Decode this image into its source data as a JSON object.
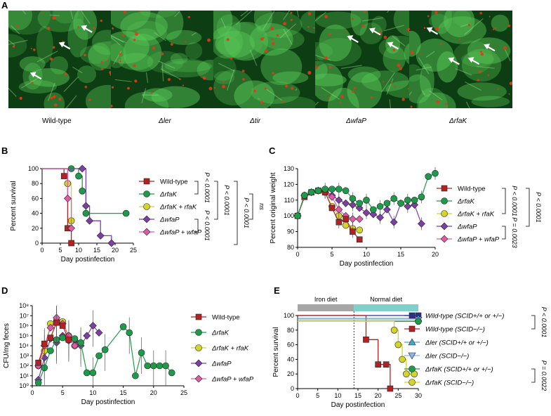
{
  "panel_letters": {
    "a": "A",
    "b": "B",
    "c": "C",
    "d": "D",
    "e": "E"
  },
  "micrographs": [
    {
      "label": "Wild-type",
      "arrows": 3
    },
    {
      "label": "Δler",
      "arrows": 0
    },
    {
      "label": "Δtir",
      "arrows": 0
    },
    {
      "label": "ΔwfaP",
      "arrows": 3
    },
    {
      "label": "ΔrfaK",
      "arrows": 4
    }
  ],
  "colors": {
    "wild_type": "#b22222",
    "rfaK": "#1e9b4a",
    "rfaK_comp": "#d4d42a",
    "wfaP": "#7d3fa6",
    "wfaP_comp": "#e05aa8",
    "ler_wt": "#2e2e8c",
    "ler_scid": "#8ab6e0",
    "iron_bar": "#a6a6a6",
    "normal_bar": "#7fcfca",
    "micro_bg": "#0d3d12",
    "micro_green": "#58c857",
    "micro_red": "#e23a1a"
  },
  "chart_data": [
    {
      "panel": "B",
      "type": "line",
      "xlabel": "Day postinfection",
      "ylabel": "Percent survival",
      "xlim": [
        0,
        25
      ],
      "ylim": [
        0,
        100
      ],
      "xticks": [
        0,
        5,
        10,
        15,
        20,
        25
      ],
      "yticks": [
        0,
        20,
        40,
        60,
        80,
        100
      ],
      "series": [
        {
          "name": "Wild-type",
          "x": [
            0,
            6,
            7,
            8
          ],
          "y": [
            100,
            90,
            20,
            0
          ]
        },
        {
          "name": "ΔrfaK",
          "x": [
            0,
            8,
            10,
            11,
            12,
            23
          ],
          "y": [
            100,
            100,
            90,
            70,
            40,
            40
          ]
        },
        {
          "name": "ΔrfaK + rfaK",
          "x": [
            0,
            7,
            8
          ],
          "y": [
            100,
            80,
            30
          ]
        },
        {
          "name": "ΔwfaP",
          "x": [
            0,
            11,
            12,
            13,
            16,
            19
          ],
          "y": [
            100,
            100,
            50,
            30,
            10,
            0
          ]
        },
        {
          "name": "ΔwfaP + wfaP",
          "x": [
            0,
            7,
            8
          ],
          "y": [
            100,
            60,
            20
          ]
        }
      ],
      "annotations": [
        "P < 0.0001",
        "P < 0.0001",
        "P < 0.0001",
        "ns",
        "P < 0.0001"
      ]
    },
    {
      "panel": "C",
      "type": "line",
      "xlabel": "Day postinfection",
      "ylabel": "Percent original weight",
      "xlim": [
        0,
        20
      ],
      "ylim": [
        80,
        130
      ],
      "xticks": [
        0,
        5,
        10,
        15,
        20
      ],
      "yticks": [
        80,
        90,
        100,
        110,
        120,
        130
      ],
      "series": [
        {
          "name": "Wild-type",
          "x": [
            0,
            1,
            2,
            3,
            4,
            5,
            6,
            7,
            8,
            9
          ],
          "y": [
            100,
            112,
            115,
            116,
            115,
            105,
            96,
            98,
            90,
            85
          ]
        },
        {
          "name": "ΔrfaK",
          "x": [
            0,
            1,
            2,
            3,
            4,
            5,
            6,
            7,
            8,
            9,
            10,
            11,
            12,
            13,
            14,
            15,
            16,
            17,
            18,
            19,
            20
          ],
          "y": [
            100,
            113,
            115,
            116,
            117,
            117,
            117,
            116,
            111,
            108,
            110,
            104,
            106,
            108,
            111,
            108,
            110,
            110,
            112,
            125,
            127
          ]
        },
        {
          "name": "ΔrfaK + rfaK",
          "x": [
            0,
            1,
            2,
            3,
            4,
            5,
            6,
            7,
            8,
            9
          ],
          "y": [
            100,
            113,
            115,
            116,
            115,
            106,
            100,
            94,
            92,
            91
          ]
        },
        {
          "name": "ΔwfaP",
          "x": [
            0,
            1,
            2,
            3,
            4,
            5,
            6,
            7,
            8,
            9,
            10,
            11,
            12,
            13,
            14,
            15,
            16,
            17,
            18
          ],
          "y": [
            100,
            113,
            115,
            116,
            116,
            113,
            110,
            108,
            107,
            105,
            102,
            101,
            99,
            104,
            96,
            108,
            106,
            107,
            95
          ]
        },
        {
          "name": "ΔwfaP + wfaP",
          "x": [
            0,
            1,
            2,
            3,
            4,
            5,
            6,
            7,
            8,
            9
          ],
          "y": [
            100,
            113,
            115,
            116,
            115,
            112,
            104,
            100,
            98,
            98
          ]
        }
      ],
      "annotations": [
        "P < 0.0001",
        "P < 0.0001",
        "P = 0.0023"
      ]
    },
    {
      "panel": "D",
      "type": "line",
      "xlabel": "Day postinfection",
      "ylabel": "CFU/mg feces",
      "xlim": [
        0,
        25
      ],
      "ylim_log10": [
        0,
        8
      ],
      "xticks": [
        0,
        5,
        10,
        15,
        20,
        25
      ],
      "yticks": [
        "10⁰",
        "10¹",
        "10²",
        "10³",
        "10⁴",
        "10⁵",
        "10⁶",
        "10⁷",
        "10⁸"
      ],
      "series": [
        {
          "name": "Wild-type",
          "x": [
            1,
            2,
            3,
            4,
            5,
            6
          ],
          "log10_y": [
            2.3,
            4.2,
            4.8,
            6.3,
            6.0,
            4.6
          ]
        },
        {
          "name": "ΔrfaK",
          "x": [
            1,
            2,
            3,
            4,
            5,
            6,
            7,
            8,
            9,
            10,
            11,
            12,
            15,
            16,
            17,
            18,
            19,
            20,
            21,
            22,
            23
          ],
          "log10_y": [
            0.3,
            1.8,
            3.5,
            4.6,
            4.8,
            4.7,
            4.7,
            4.3,
            1.3,
            1.3,
            3.0,
            3.6,
            5.9,
            5.3,
            1.0,
            3.3,
            2.0,
            2.0,
            2.0,
            2.0,
            1.3
          ]
        },
        {
          "name": "ΔrfaK + rfaK",
          "x": [
            1,
            2,
            3,
            4,
            5,
            6,
            7
          ],
          "log10_y": [
            2.0,
            3.5,
            6.2,
            6.5,
            6.4,
            5.0,
            4.0
          ]
        },
        {
          "name": "ΔwfaP",
          "x": [
            1,
            2,
            3,
            4,
            5,
            6,
            7,
            8,
            9,
            10,
            11
          ],
          "log10_y": [
            0.6,
            2.8,
            4.7,
            4.3,
            5.0,
            4.5,
            4.5,
            4.0,
            5.0,
            6.0,
            5.3
          ]
        },
        {
          "name": "ΔwfaP + wfaP",
          "x": [
            1,
            2,
            3,
            4,
            5,
            6,
            7
          ],
          "log10_y": [
            2.0,
            4.0,
            5.8,
            6.8,
            6.2,
            5.0,
            4.0
          ]
        }
      ]
    },
    {
      "panel": "E",
      "type": "line",
      "xlabel": "Day postinfection",
      "ylabel": "Percent survival",
      "xlim": [
        0,
        30
      ],
      "ylim": [
        0,
        100
      ],
      "xticks": [
        0,
        5,
        10,
        15,
        20,
        25,
        30
      ],
      "yticks": [
        0,
        20,
        40,
        60,
        80,
        100
      ],
      "diet_labels": [
        "Iron diet",
        "Normal diet"
      ],
      "diet_switch_day": 14,
      "series": [
        {
          "name": "Wild-type (SCID+/+ or +/−)",
          "x": [
            0,
            30
          ],
          "y": [
            100,
            100
          ]
        },
        {
          "name": "Wild-type (SCID−/−)",
          "x": [
            0,
            15,
            17,
            20,
            22,
            23
          ],
          "y": [
            100,
            100,
            67,
            33,
            33,
            0
          ]
        },
        {
          "name": "Δler (SCID+/+ or +/−)",
          "x": [
            0,
            30
          ],
          "y": [
            96,
            96
          ]
        },
        {
          "name": "Δler (SCID−/−)",
          "x": [
            0,
            30
          ],
          "y": [
            94,
            94
          ]
        },
        {
          "name": "ΔrfaK (SCID+/+ or +/−)",
          "x": [
            0,
            30
          ],
          "y": [
            92,
            92
          ]
        },
        {
          "name": "ΔrfaK (SCID−/−)",
          "x": [
            0,
            22,
            24,
            25,
            26,
            27,
            29
          ],
          "y": [
            92,
            92,
            80,
            60,
            40,
            20,
            20
          ]
        }
      ],
      "annotations": [
        "P < 0.0001",
        "P = 0.0022"
      ]
    }
  ]
}
